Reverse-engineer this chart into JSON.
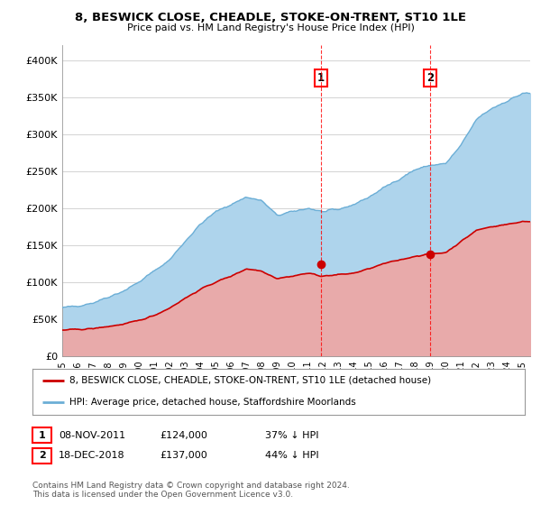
{
  "title": "8, BESWICK CLOSE, CHEADLE, STOKE-ON-TRENT, ST10 1LE",
  "subtitle": "Price paid vs. HM Land Registry's House Price Index (HPI)",
  "ylabel_ticks": [
    "£0",
    "£50K",
    "£100K",
    "£150K",
    "£200K",
    "£250K",
    "£300K",
    "£350K",
    "£400K"
  ],
  "ytick_values": [
    0,
    50000,
    100000,
    150000,
    200000,
    250000,
    300000,
    350000,
    400000
  ],
  "ylim": [
    0,
    420000
  ],
  "xlim_start": 1995.0,
  "xlim_end": 2025.5,
  "hpi_color": "#6baed6",
  "hpi_fill_color": "#aed4ec",
  "price_color": "#cc0000",
  "price_fill_color": "#e8aaaa",
  "sale1_price": 124000,
  "sale1_x": 2011.85,
  "sale2_price": 137000,
  "sale2_x": 2018.96,
  "legend_label_red": "8, BESWICK CLOSE, CHEADLE, STOKE-ON-TRENT, ST10 1LE (detached house)",
  "legend_label_blue": "HPI: Average price, detached house, Staffordshire Moorlands",
  "footer": "Contains HM Land Registry data © Crown copyright and database right 2024.\nThis data is licensed under the Open Government Licence v3.0.",
  "table_row1": [
    "1",
    "08-NOV-2011",
    "£124,000",
    "37% ↓ HPI"
  ],
  "table_row2": [
    "2",
    "18-DEC-2018",
    "£137,000",
    "44% ↓ HPI"
  ],
  "background_color": "#ffffff",
  "grid_color": "#cccccc"
}
